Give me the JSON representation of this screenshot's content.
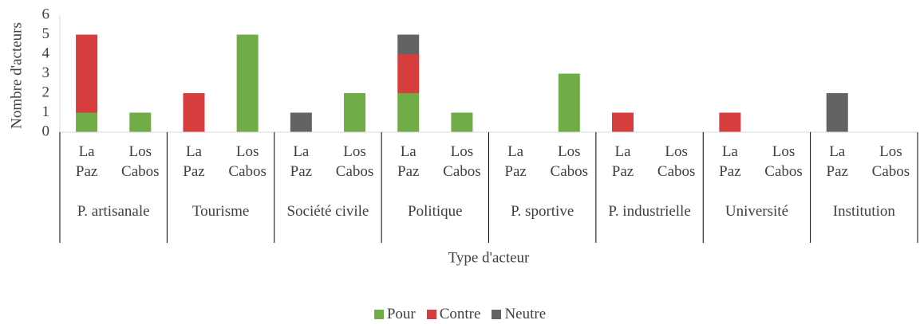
{
  "chart_data": {
    "type": "stacked_bar",
    "y_label": "Nombre d'acteurs",
    "x_label": "Type d'acteur",
    "groups": [
      "P. artisanale",
      "Tourisme",
      "Société civile",
      "Politique",
      "P. sportive",
      "P. industrielle",
      "Université",
      "Institution"
    ],
    "categories": [
      "La Paz",
      "Los Cabos",
      "La Paz",
      "Los Cabos",
      "La Paz",
      "Los Cabos",
      "La Paz",
      "Los Cabos",
      "La Paz",
      "Los Cabos",
      "La Paz",
      "Los Cabos",
      "La Paz",
      "Los Cabos",
      "La Paz",
      "Los Cabos"
    ],
    "series": [
      {
        "name": "Pour",
        "color": "#70ad47",
        "values": [
          1,
          1,
          0,
          5,
          0,
          2,
          2,
          1,
          0,
          3,
          0,
          0,
          0,
          0,
          0,
          0
        ]
      },
      {
        "name": "Contre",
        "color": "#d63d3d",
        "values": [
          4,
          0,
          2,
          0,
          0,
          0,
          2,
          0,
          0,
          0,
          1,
          0,
          1,
          0,
          0,
          0
        ]
      },
      {
        "name": "Neutre",
        "color": "#636363",
        "values": [
          0,
          0,
          0,
          0,
          1,
          0,
          1,
          0,
          0,
          0,
          0,
          0,
          0,
          0,
          2,
          0
        ]
      }
    ],
    "ylim": [
      0,
      6
    ],
    "yticks": [
      0,
      1,
      2,
      3,
      4,
      5,
      6
    ],
    "legend": "bottom"
  }
}
